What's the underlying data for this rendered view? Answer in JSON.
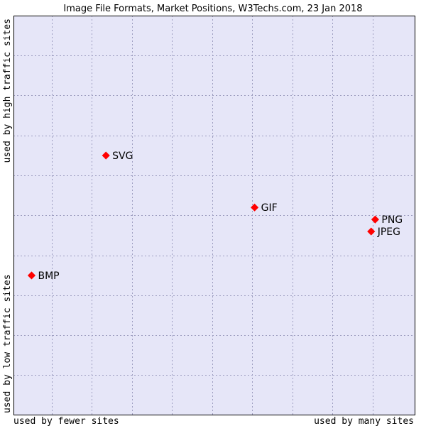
{
  "chart_data": {
    "type": "scatter",
    "title": "Image File Formats, Market Positions, W3Techs.com, 23 Jan 2018",
    "xlim": [
      0,
      100
    ],
    "ylim": [
      0,
      100
    ],
    "grid": true,
    "x_axis_labels": {
      "left": "used by fewer sites",
      "right": "used by many sites"
    },
    "y_axis_labels": {
      "top": "used by high traffic sites",
      "bottom": "used by low traffic sites"
    },
    "points": [
      {
        "label": "SVG",
        "x": 23,
        "y": 65
      },
      {
        "label": "GIF",
        "x": 60,
        "y": 52
      },
      {
        "label": "PNG",
        "x": 90,
        "y": 49
      },
      {
        "label": "JPEG",
        "x": 89,
        "y": 46
      },
      {
        "label": "BMP",
        "x": 4.5,
        "y": 35
      }
    ],
    "colors": {
      "background": "#e6e6f8",
      "grid": "#9d9dc0",
      "frame": "#000000",
      "marker": "#ff0000"
    }
  }
}
